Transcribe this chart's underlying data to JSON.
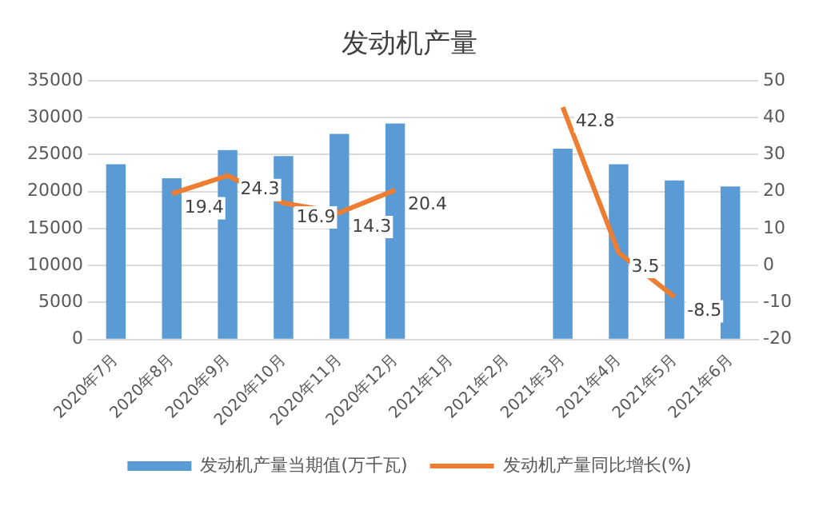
{
  "chart_data": {
    "type": "bar",
    "title": "发动机产量",
    "categories": [
      "2020年7月",
      "2020年8月",
      "2020年9月",
      "2020年10月",
      "2020年11月",
      "2020年12月",
      "2021年1月",
      "2021年2月",
      "2021年3月",
      "2021年4月",
      "2021年5月",
      "2021年6月"
    ],
    "series": [
      {
        "name": "发动机产量当期值(万千瓦)",
        "color": "#5b9bd5",
        "values": [
          23700,
          21800,
          25600,
          24800,
          27800,
          29200,
          null,
          null,
          25800,
          23700,
          21500,
          20700
        ]
      },
      {
        "name": "发动机产量同比增长(%)",
        "type": "line",
        "axis": "y2",
        "color": "#ed7d31",
        "values": [
          null,
          19.4,
          24.3,
          16.9,
          14.3,
          20.4,
          null,
          null,
          42.8,
          3.5,
          -8.5,
          null
        ],
        "value_labels": [
          null,
          "19.4",
          "24.3",
          "16.9",
          "14.3",
          "20.4",
          null,
          null,
          "42.8",
          "3.5",
          "-8.5",
          null
        ]
      }
    ],
    "ylim": [
      0,
      35000
    ],
    "yticks": [
      0,
      5000,
      10000,
      15000,
      20000,
      25000,
      30000,
      35000
    ],
    "y2lim": [
      -20,
      50
    ],
    "y2ticks": [
      -20,
      -10,
      0,
      10,
      20,
      30,
      40,
      50
    ],
    "grid": "y",
    "legend": "bottom",
    "marker": "none",
    "line_style": "solid"
  }
}
